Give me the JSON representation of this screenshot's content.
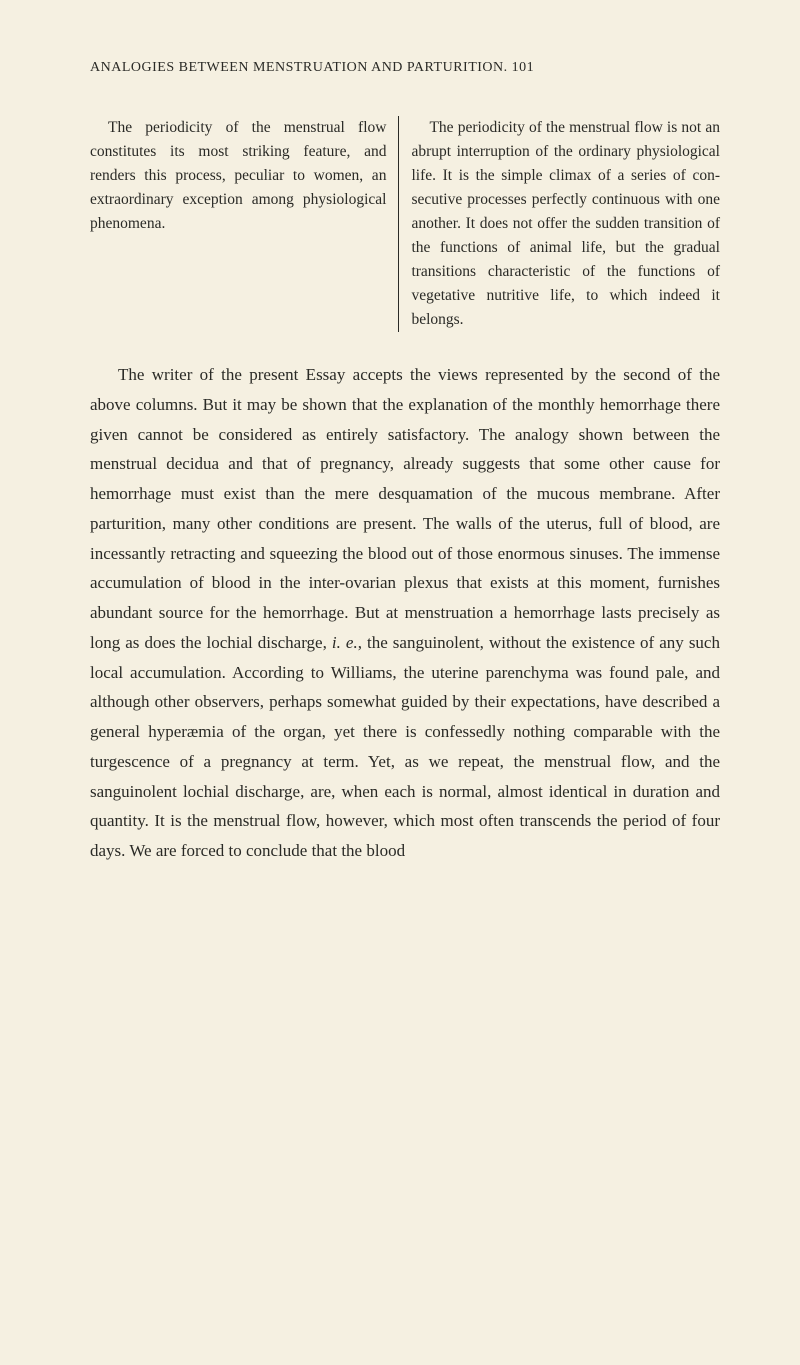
{
  "header": "ANALOGIES BETWEEN MENSTRUATION AND PARTURITION. 101",
  "colLeft": "The periodicity of the menstrual flow constitutes its most striking feature, and renders this process, peculiar to women, an extraordinary exception among physiological phe­nomena.",
  "colRight": "The periodicity of the menstrual flow is not an abrupt interruption of the ordinary physiological life. It is the simple climax of a series of con­secutive processes perfectly continu­ous with one another. It does not offer the sudden transition of the func­tions of animal life, but the gradual transitions characteristic of the func­tions of vegetative nutritive life, to which indeed it belongs.",
  "body_pre": "The writer of the present Essay accepts the views repre­sented by the second of the above columns. But it may be shown that the explanation of the monthly hemorrhage there given cannot be considered as entirely satisfactory. The analogy shown between the menstrual decidua and that of pregnancy, already suggests that some other cause for hemorrhage must exist than the mere desquamation of the mucous membrane. After parturition, many other condi­tions are present. The walls of the uterus, full of blood, are incessantly retracting and squeezing the blood out of those enormous sinuses. The immense accumulation of blood in the inter-ovarian plexus that exists at this moment, furnishes abundant source for the hemorrhage. But at menstruation a hemorrhage lasts precisely as long as does the lochial dis­charge, ",
  "body_ital": "i. e.",
  "body_post": ", the sanguinolent, without the existence of any such local accumulation. According to Williams, the uterine parenchyma was found pale, and although other observers, perhaps somewhat guided by their expectations, have de­scribed a general hyperæmia of the organ, yet there is con­fessedly nothing comparable with the turgescence of a preg­nancy at term. Yet, as we repeat, the menstrual flow, and the sanguinolent lochial discharge, are, when each is normal, almost identical in duration and quantity. It is the men­strual flow, however, which most often transcends the period of four days. We are forced to conclude that the blood"
}
